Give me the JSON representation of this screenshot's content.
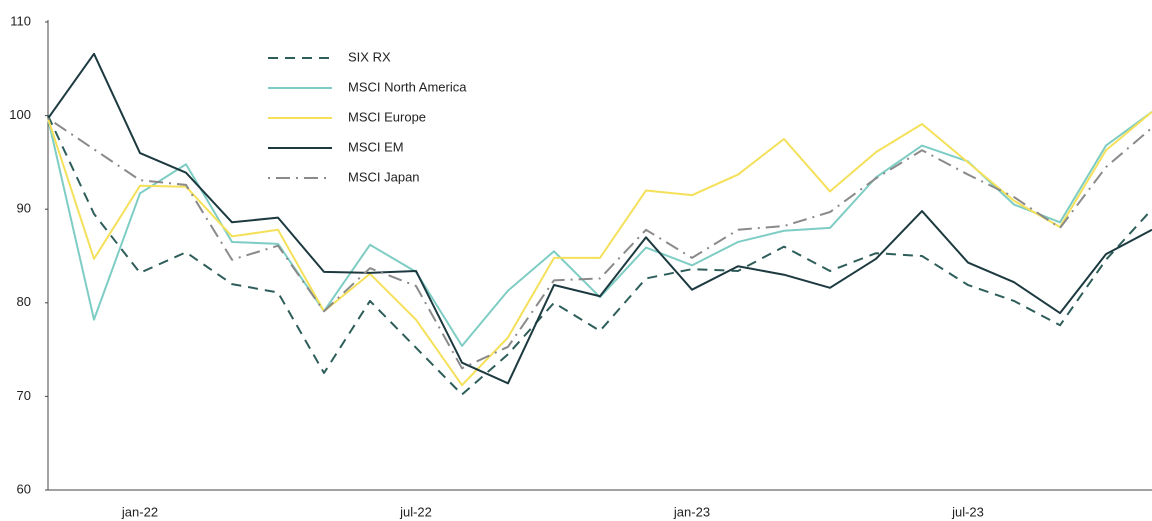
{
  "chart_data": {
    "type": "line",
    "categories": [
      null,
      null,
      "jan-22",
      null,
      null,
      null,
      null,
      null,
      "jul-22",
      null,
      null,
      null,
      null,
      null,
      "jan-23",
      null,
      null,
      null,
      null,
      null,
      "jul-23",
      null,
      null,
      null,
      null
    ],
    "ylim": [
      60,
      110
    ],
    "yticks": [
      60,
      70,
      80,
      90,
      100,
      110
    ],
    "grid": false,
    "legend": "upper left",
    "series": [
      {
        "name": "SIX RX",
        "color": "#2e5e5a",
        "dash": "10,7",
        "values": [
          100,
          89.5,
          83.2,
          85.4,
          82,
          81.1,
          72.5,
          80.2,
          75.2,
          70.2,
          74.5,
          80,
          77,
          82.6,
          83.6,
          83.4,
          86,
          83.4,
          85.3,
          85,
          81.9,
          80.2,
          77.6,
          84.6,
          90
        ]
      },
      {
        "name": "MSCI North America",
        "color": "#7ecdc4",
        "dash": "none",
        "values": [
          99.7,
          78.2,
          91.7,
          94.8,
          86.5,
          86.3,
          79.1,
          86.2,
          83.3,
          75.4,
          81.3,
          85.5,
          80.6,
          85.9,
          84,
          86.5,
          87.7,
          88,
          93.4,
          96.8,
          95.1,
          90.5,
          88.6,
          96.8,
          100.4
        ]
      },
      {
        "name": "MSCI Europe",
        "color": "#f5e05a",
        "dash": "none",
        "values": [
          99.7,
          84.7,
          92.5,
          92.4,
          87.1,
          87.8,
          79.1,
          83.1,
          78.2,
          71.2,
          76.3,
          84.8,
          84.8,
          92,
          91.5,
          93.7,
          97.5,
          91.9,
          96.1,
          99.1,
          95,
          90.9,
          88.1,
          96.3,
          100.4
        ]
      },
      {
        "name": "MSCI EM",
        "color": "#1c3a40",
        "dash": "none",
        "values": [
          99.7,
          106.6,
          96,
          93.9,
          88.6,
          89.1,
          83.3,
          83.2,
          83.4,
          73.6,
          71.4,
          81.9,
          80.7,
          87,
          81.4,
          83.9,
          83,
          81.6,
          84.7,
          89.8,
          84.3,
          82.2,
          78.9,
          85.2,
          87.8
        ]
      },
      {
        "name": "MSCI Japan",
        "color": "#8a8a8a",
        "dash": "2,6,14,6",
        "values": [
          99.7,
          96.4,
          93.1,
          92.6,
          84.6,
          86.1,
          79.1,
          83.7,
          81.8,
          73,
          75.3,
          82.4,
          82.6,
          87.8,
          84.8,
          87.8,
          88.2,
          89.7,
          93.3,
          96.3,
          93.7,
          91.3,
          88,
          94.5,
          98.7
        ]
      }
    ]
  }
}
